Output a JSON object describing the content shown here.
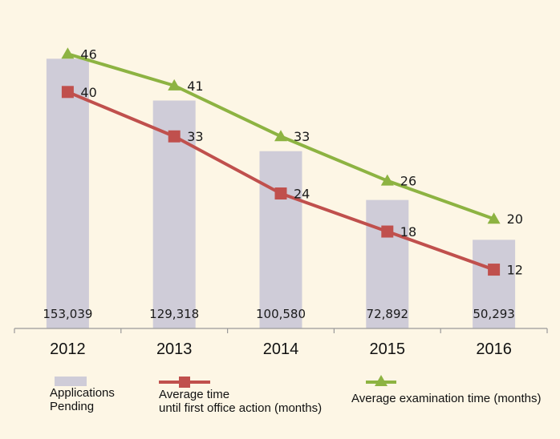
{
  "colors": {
    "background": "#fdf6e5",
    "bars": "#cfccd8",
    "red_line": "#c0504d",
    "green_line": "#8db342",
    "axis": "#9a9a9a"
  },
  "chart_data": {
    "type": "bar",
    "categories": [
      "2012",
      "2013",
      "2014",
      "2015",
      "2016"
    ],
    "ylim": [
      0,
      160000
    ],
    "bars": {
      "name": "Applications Pending",
      "values": [
        153039,
        129318,
        100580,
        72892,
        50293
      ],
      "labels": [
        "153,039",
        "129,318",
        "100,580",
        "72,892",
        "50,293"
      ]
    },
    "series": [
      {
        "name": "Average time until first office action (months)",
        "type": "line",
        "marker": "square",
        "values": [
          40,
          33,
          24,
          18,
          12
        ],
        "labels": [
          "40",
          "33",
          "24",
          "18",
          "12"
        ]
      },
      {
        "name": "Average examination time (months)",
        "type": "line",
        "marker": "triangle",
        "values": [
          46,
          41,
          33,
          26,
          20
        ],
        "labels": [
          "46",
          "41",
          "33",
          "26",
          "20"
        ]
      }
    ],
    "line_ylim": [
      0,
      50
    ],
    "title": "",
    "xlabel": "",
    "ylabel": "",
    "grid": false,
    "legend": {
      "position": "bottom",
      "items": [
        {
          "lines": [
            "Applications",
            "Pending"
          ]
        },
        {
          "lines": [
            "Average time",
            "until first office action (months)"
          ]
        },
        {
          "lines": [
            "Average examination time (months)"
          ]
        }
      ]
    }
  }
}
